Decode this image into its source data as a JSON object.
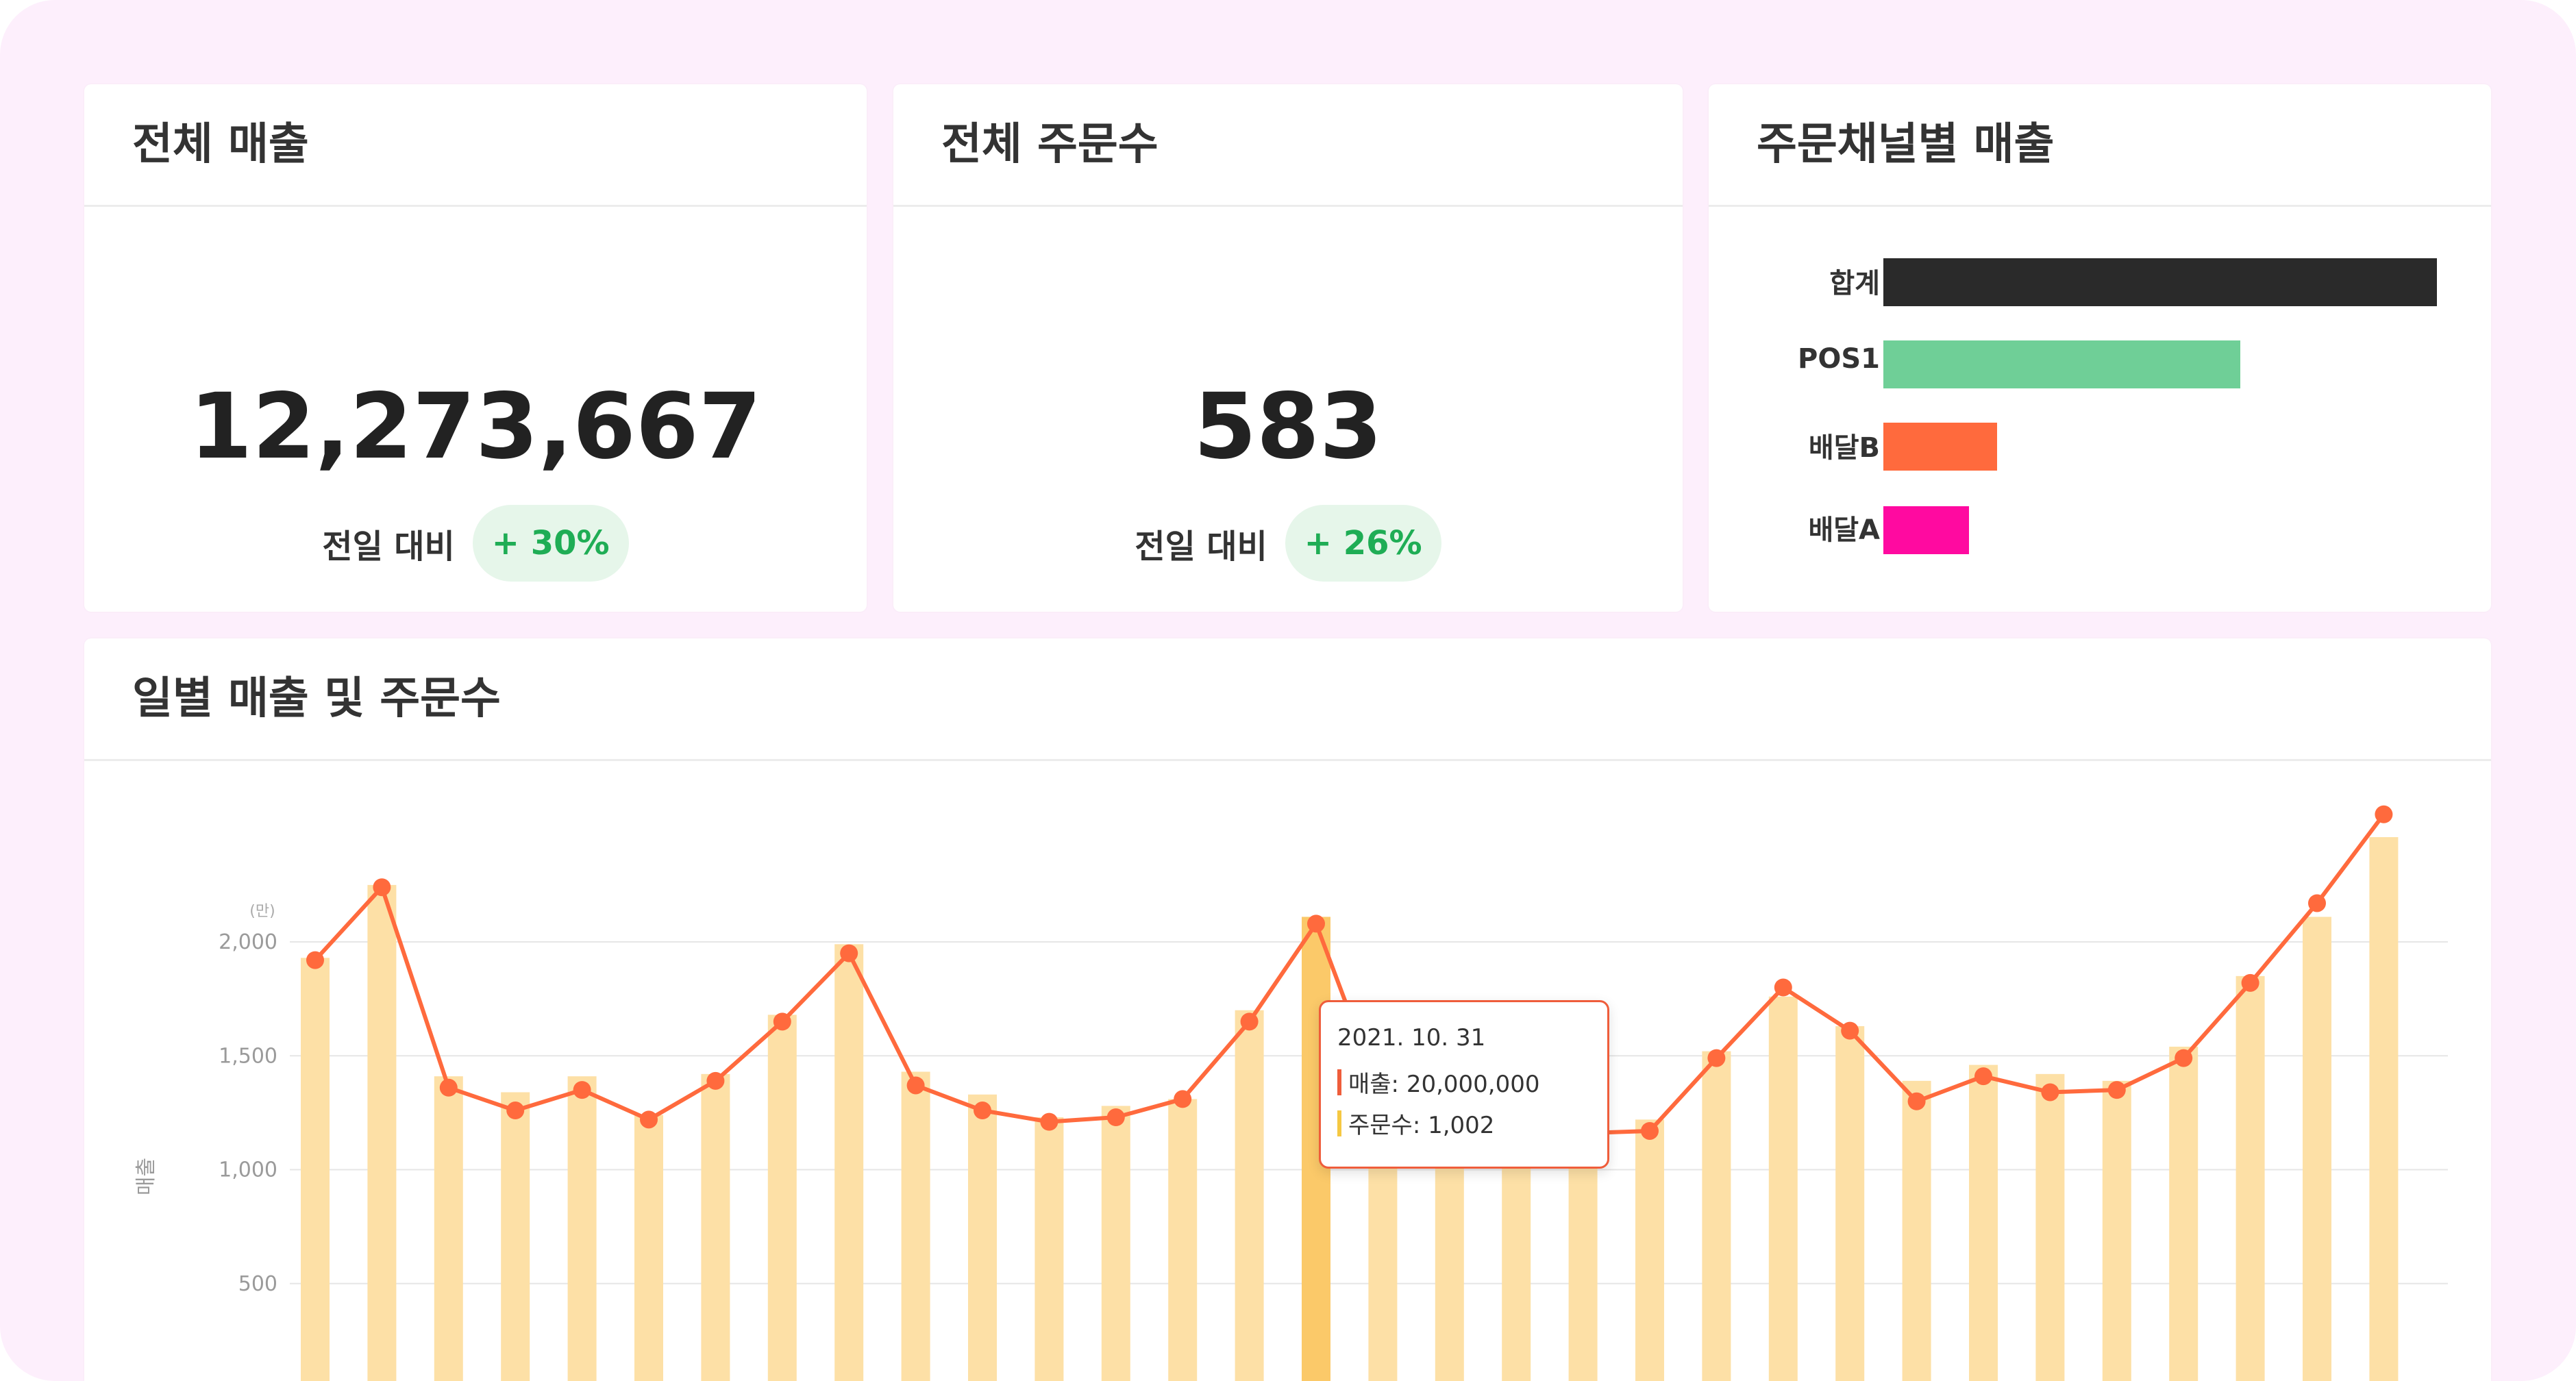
{
  "cards": {
    "total_sales": {
      "title": "전체 매출",
      "value": "12,273,667",
      "compare_label": "전일 대비",
      "compare_change": "+ 30%"
    },
    "total_orders": {
      "title": "전체 주문수",
      "value": "583",
      "compare_label": "전일 대비",
      "compare_change": "+ 26%"
    },
    "channel_sales": {
      "title": "주문채널별 매출"
    },
    "daily": {
      "title": "일별 매출 및 주문수"
    }
  },
  "tooltip": {
    "date": "2021. 10. 31",
    "sales_line": "매출: 20,000,000",
    "orders_line": "주문수: 1,002",
    "sales_color": "#ef5d3b",
    "orders_color": "#f5c842"
  },
  "colors": {
    "background": "#fdeffc",
    "positive_badge_bg": "#e6f6ea",
    "positive_badge_text": "#1fad55",
    "bar_fill": "#fde0a6",
    "bar_highlight": "#fbc969",
    "line": "#ff6a3d"
  },
  "chart_data": [
    {
      "type": "bar",
      "orientation": "horizontal",
      "categories": [
        "합계",
        "POS1",
        "배달B",
        "배달A"
      ],
      "values": [
        100,
        64.5,
        20.5,
        15.5
      ],
      "value_note_hidden": true,
      "colors": [
        "#2a2a2a",
        "#6fcf97",
        "#ff6a3d",
        "#ff0aa0"
      ]
    },
    {
      "type": "bar+line",
      "ylabel": "매출",
      "y_unit": "(만)",
      "y_ticks": [
        500,
        1000,
        1500,
        2000
      ],
      "ylim": [
        0,
        2800
      ],
      "x_count": 32,
      "highlight_index": 15,
      "series": [
        {
          "kind": "bar",
          "values": [
            1930,
            2250,
            1410,
            1340,
            1410,
            1240,
            1420,
            1680,
            1990,
            1430,
            1330,
            1230,
            1280,
            1310,
            1700,
            2110,
            1330,
            1200,
            1230,
            1220,
            1220,
            1520,
            1760,
            1630,
            1390,
            1460,
            1420,
            1390,
            1540,
            1850,
            2110,
            2460
          ]
        },
        {
          "kind": "line",
          "values": [
            1920,
            2240,
            1360,
            1260,
            1350,
            1220,
            1390,
            1650,
            1950,
            1370,
            1260,
            1210,
            1230,
            1310,
            1650,
            2080,
            1300,
            1140,
            1170,
            1160,
            1170,
            1490,
            1800,
            1610,
            1300,
            1410,
            1340,
            1350,
            1490,
            1820,
            2170,
            2560
          ]
        }
      ]
    }
  ]
}
